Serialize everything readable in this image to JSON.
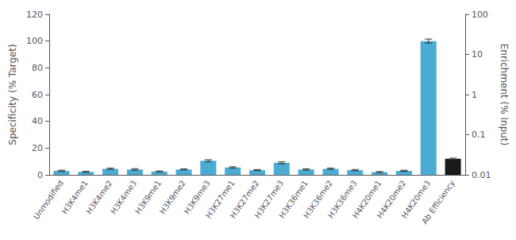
{
  "chart_data": {
    "type": "bar",
    "categories": [
      "Unmodified",
      "H3K4me1",
      "H3K4me2",
      "H3K4me3",
      "H3K9me1",
      "H3K9me2",
      "H3K9me3",
      "H3K27me1",
      "H3K27me2",
      "H3K27me3",
      "H3K36me1",
      "H3K36me2",
      "H3K36me3",
      "H4K20me1",
      "H4K20me2",
      "H4K20me3",
      "Ab Efficiency"
    ],
    "values": [
      3.0,
      2.2,
      4.5,
      4.0,
      2.5,
      4.0,
      10.5,
      5.5,
      3.5,
      9.0,
      4.0,
      4.5,
      3.5,
      2.0,
      3.0,
      100.0,
      12.0
    ],
    "errors": [
      0.5,
      0.4,
      0.5,
      0.6,
      0.4,
      0.4,
      0.8,
      0.5,
      0.4,
      0.7,
      0.5,
      0.5,
      0.5,
      0.5,
      0.4,
      1.5,
      0.5
    ],
    "colors": [
      "#4aacd4",
      "#4aacd4",
      "#4aacd4",
      "#4aacd4",
      "#4aacd4",
      "#4aacd4",
      "#4aacd4",
      "#4aacd4",
      "#4aacd4",
      "#4aacd4",
      "#4aacd4",
      "#4aacd4",
      "#4aacd4",
      "#4aacd4",
      "#4aacd4",
      "#4aacd4",
      "#1a1a1a"
    ],
    "ylabel": "Specificity (% Target)",
    "ylim": [
      0,
      120
    ],
    "yticks": [
      0,
      20,
      40,
      60,
      80,
      100,
      120
    ],
    "y2label": "Enrichment (% Input)",
    "y2lim": [
      0.01,
      100
    ],
    "y2ticks": [
      0.01,
      0.1,
      1,
      10,
      100
    ],
    "log": "y2",
    "grid": false
  }
}
